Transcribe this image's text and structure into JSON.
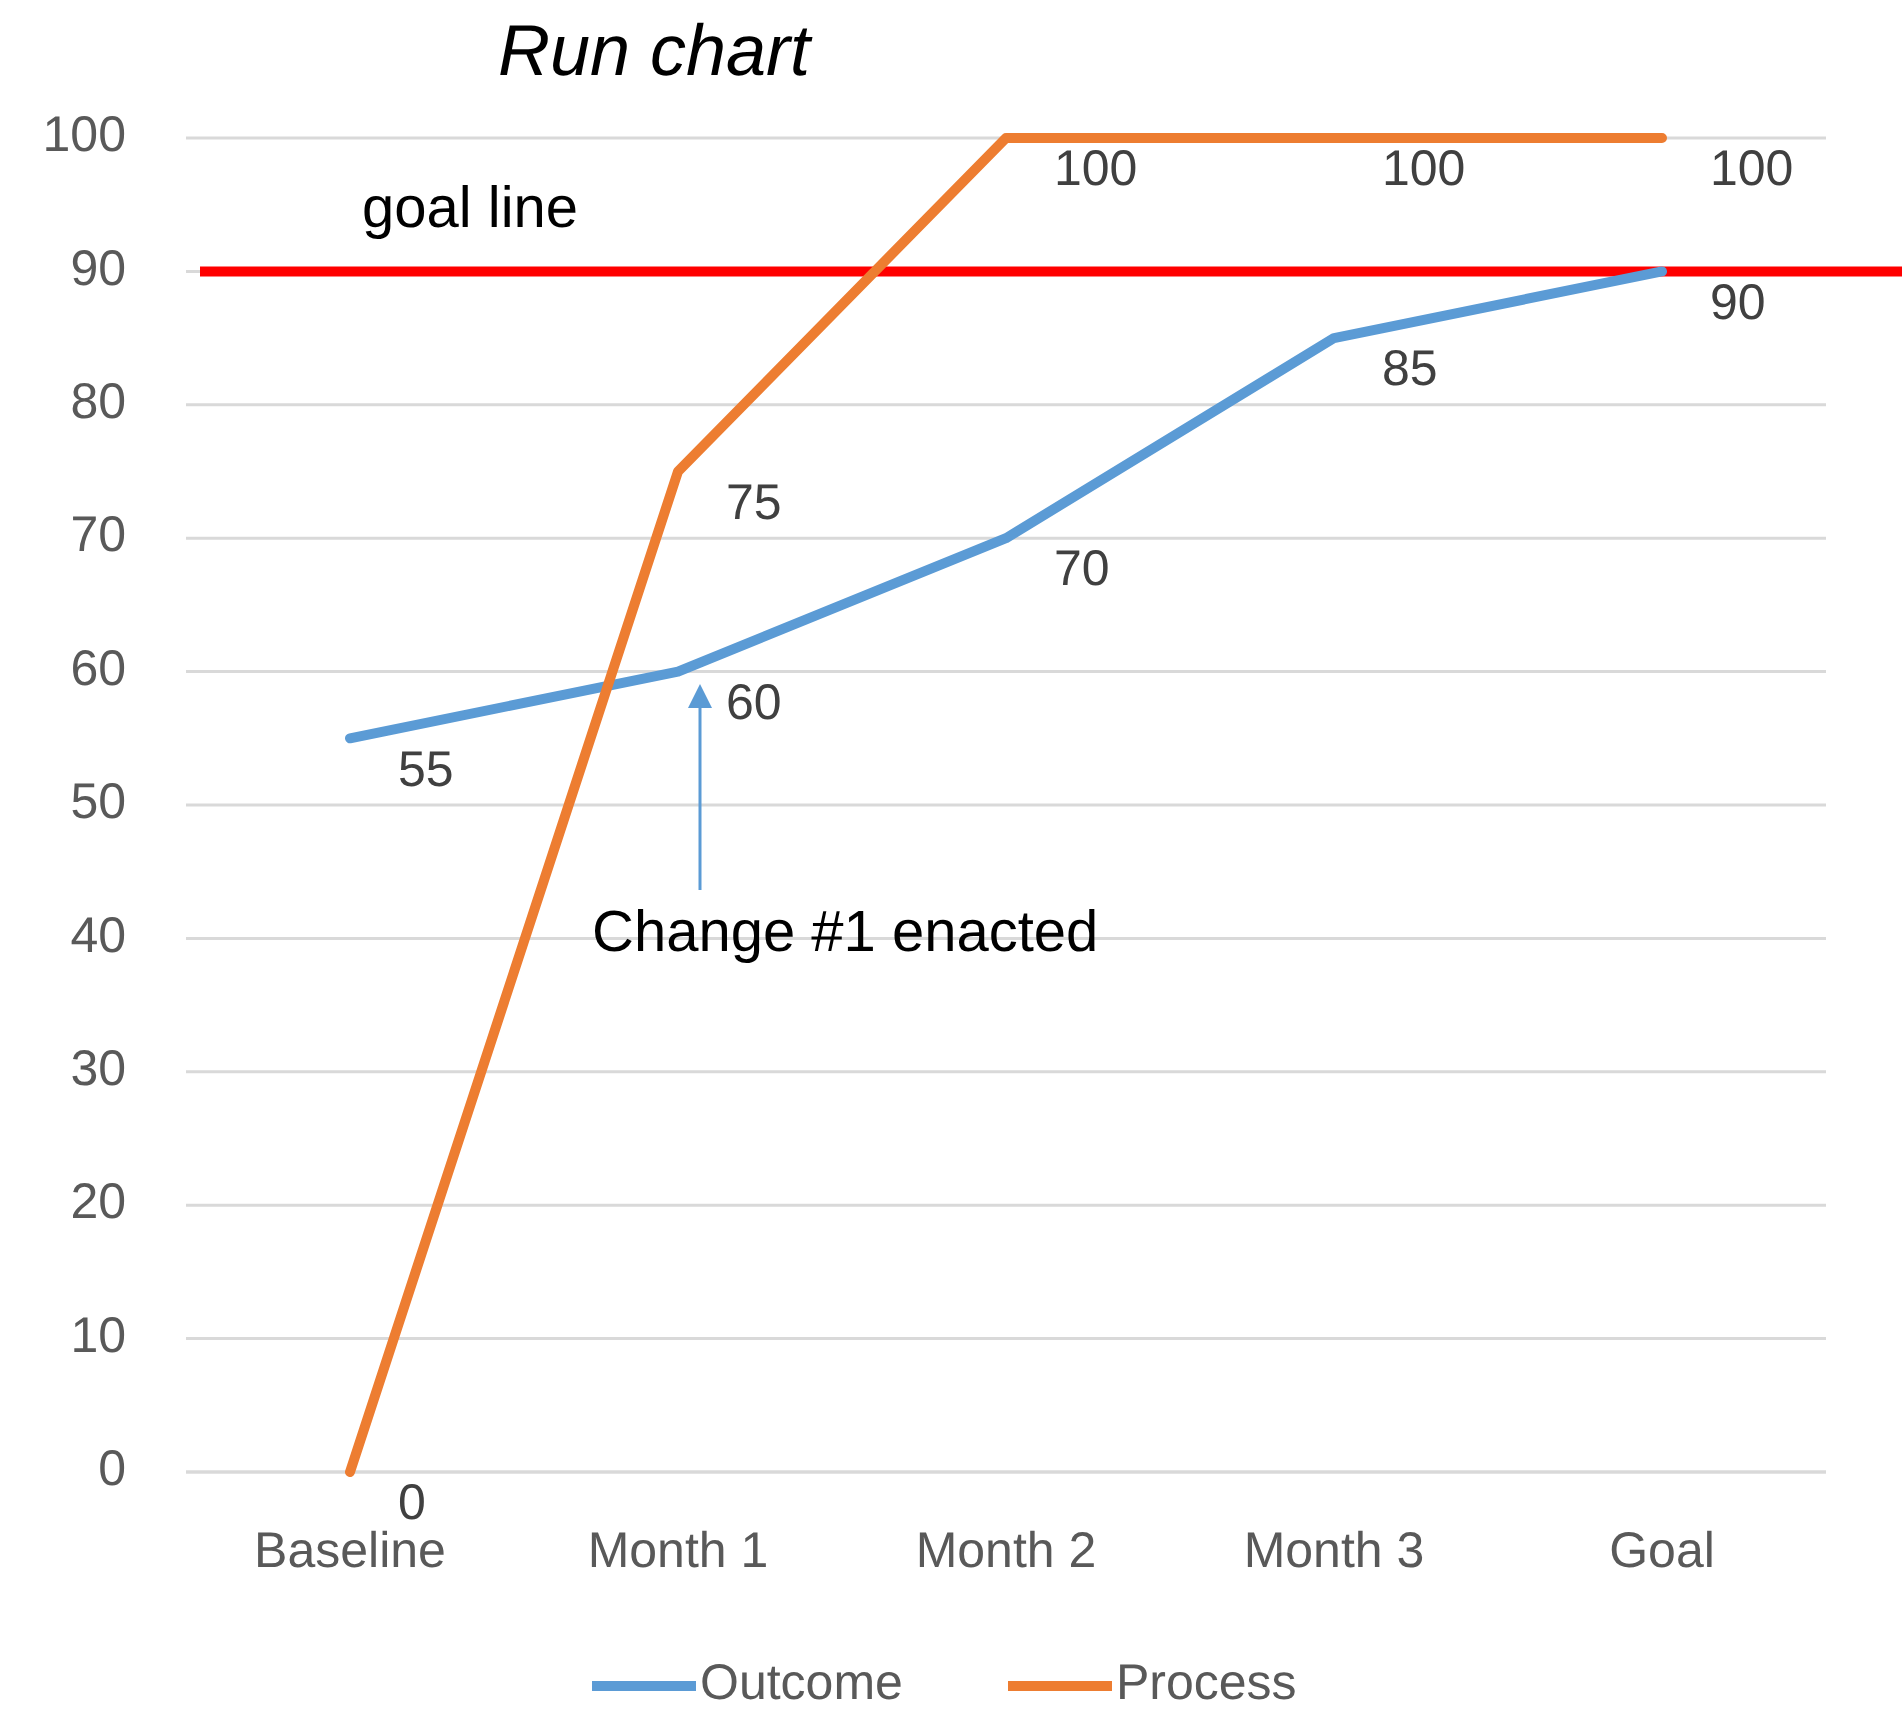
{
  "chart_data": {
    "type": "line",
    "title": "Run chart",
    "categories": [
      "Baseline",
      "Month 1",
      "Month 2",
      "Month 3",
      "Goal"
    ],
    "series": [
      {
        "name": "Outcome",
        "color": "#5b9bd5",
        "values": [
          55,
          60,
          70,
          85,
          90
        ]
      },
      {
        "name": "Process",
        "color": "#ed7d31",
        "values": [
          0,
          75,
          100,
          100,
          100
        ]
      }
    ],
    "ylim": [
      0,
      100
    ],
    "yticks": [
      0,
      10,
      20,
      30,
      40,
      50,
      60,
      70,
      80,
      90,
      100
    ],
    "grid": "y",
    "legend": "bottom",
    "data_labels": true,
    "marker": "none",
    "line_style": "solid",
    "ref_lines": [
      {
        "axis": "y",
        "value": 90,
        "label": "goal line",
        "color": "#ff0000"
      }
    ],
    "annotations": [
      "Change #1 enacted"
    ]
  }
}
